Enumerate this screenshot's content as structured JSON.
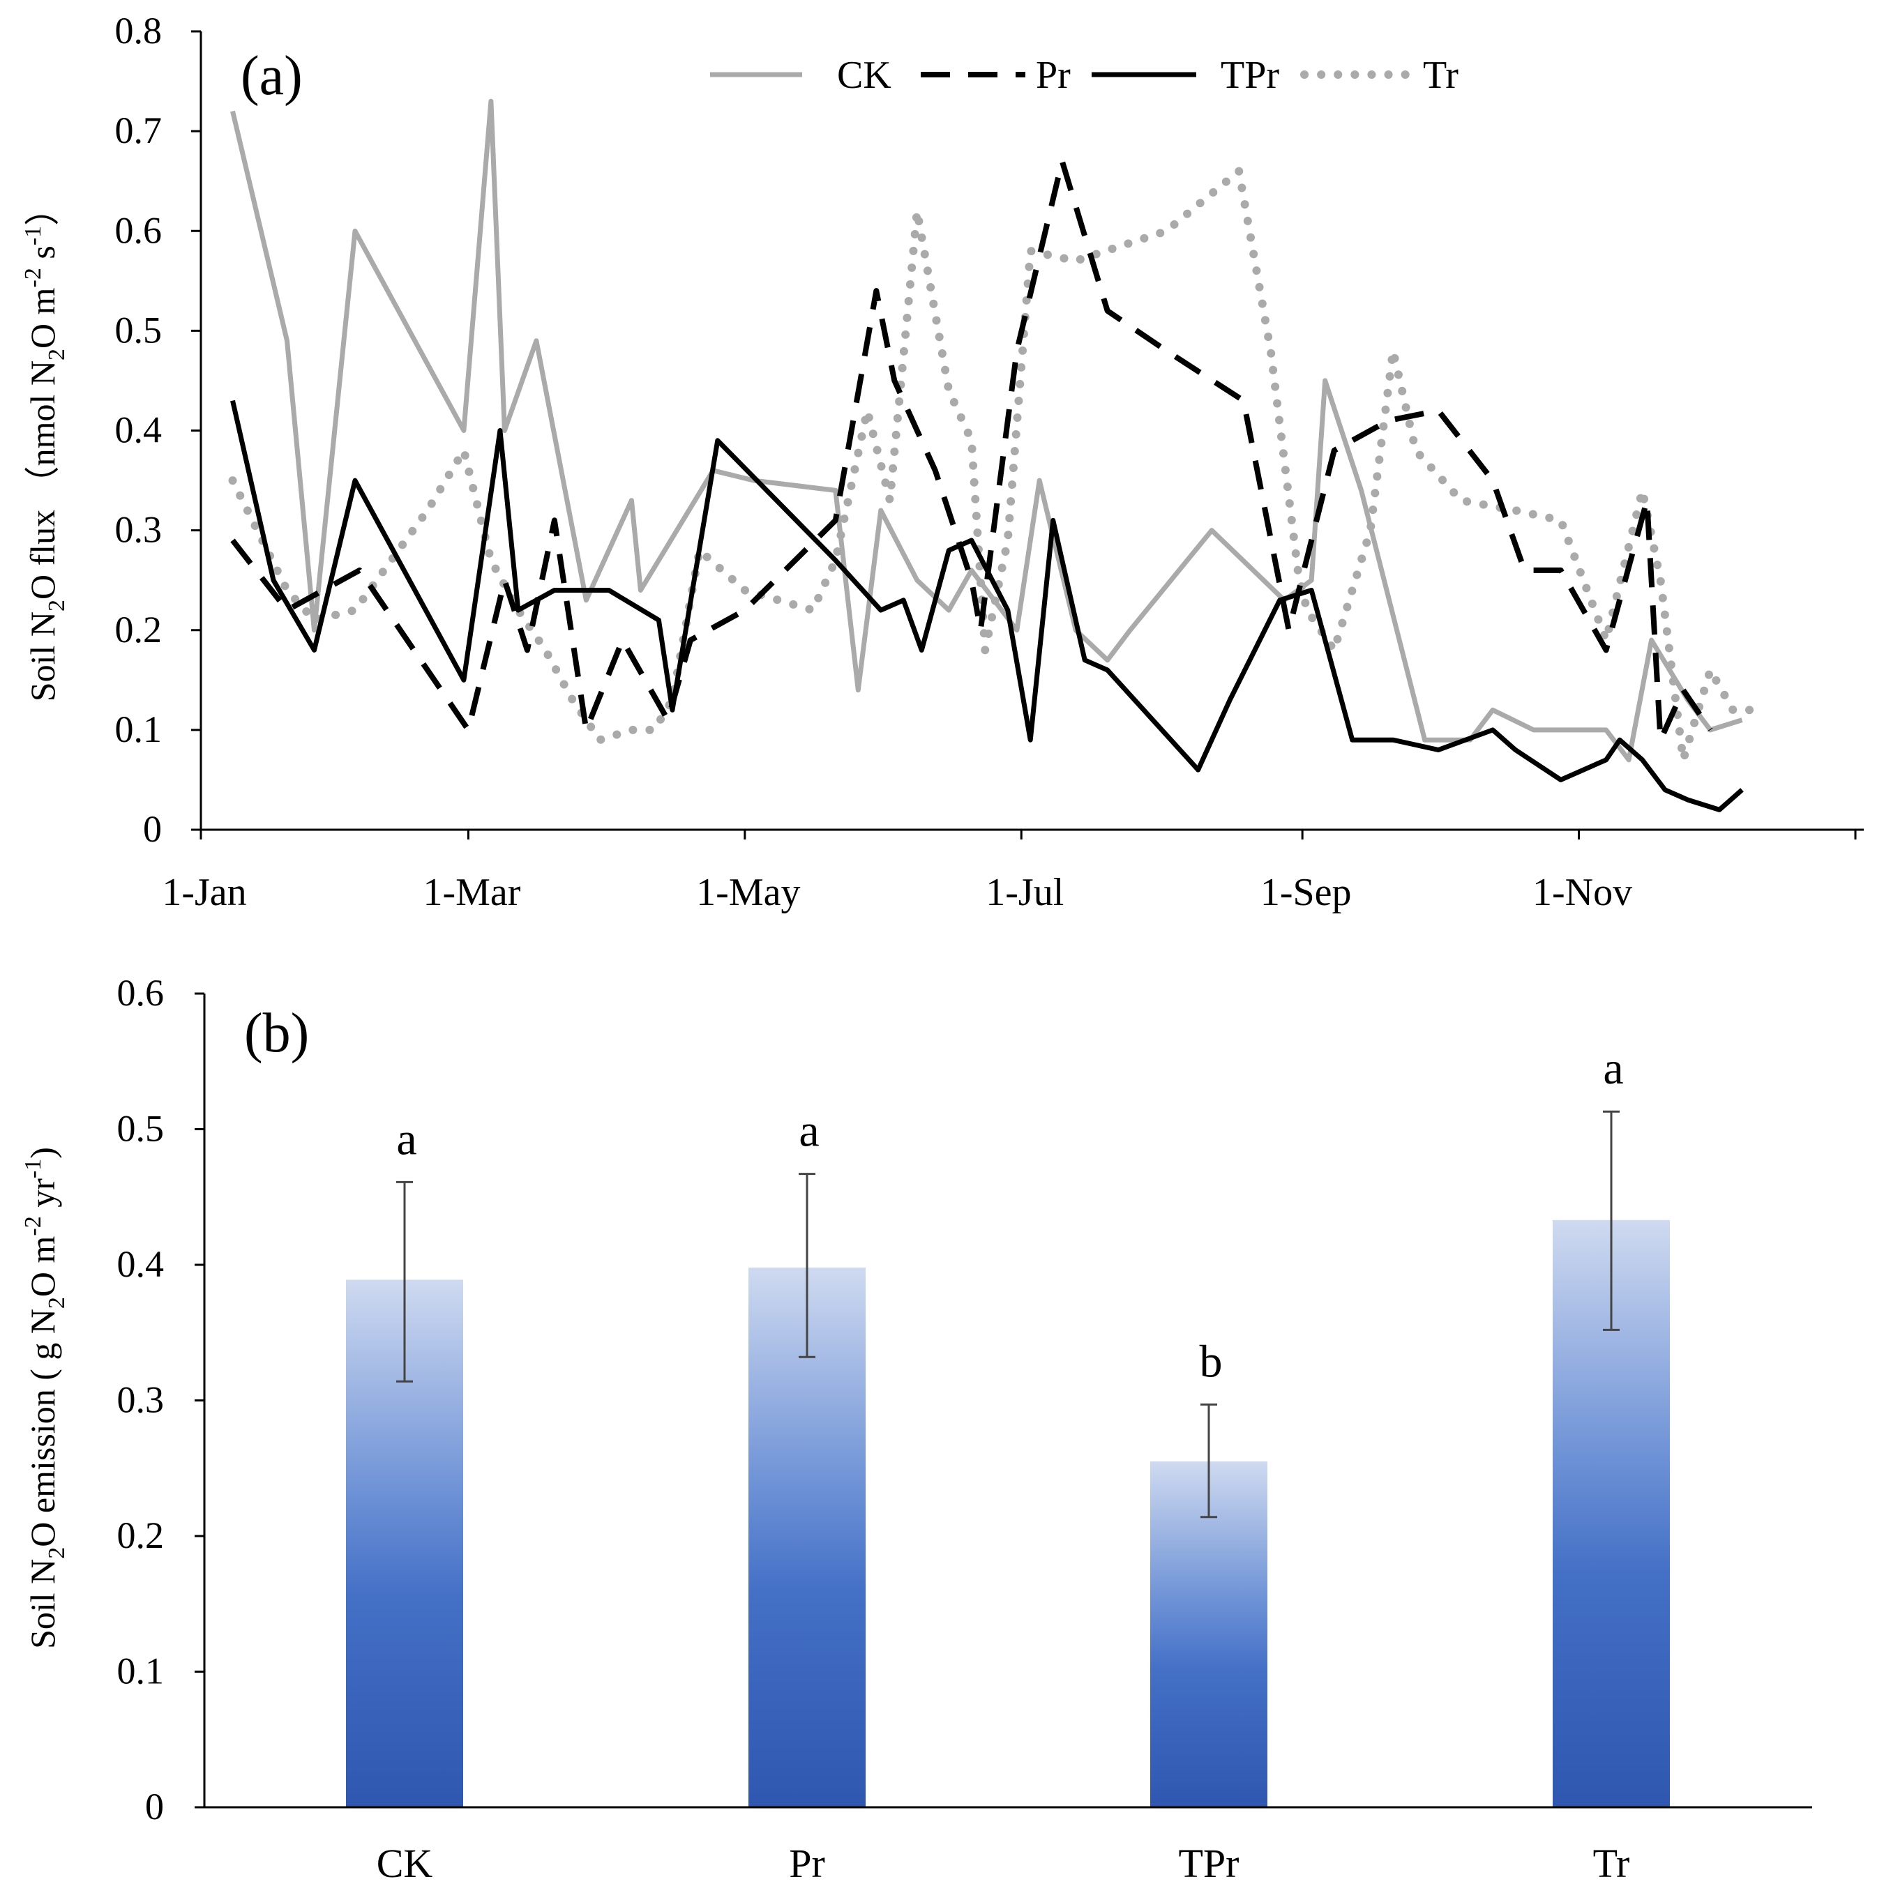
{
  "chart_data": [
    {
      "type": "line",
      "panel_label": "(a)",
      "ylabel": "Soil N2O flux （nmol N2O m-2 s-1）",
      "ylabel_parts": {
        "a": "Soil N",
        "b": "2",
        "c": "O flux （nmol N",
        "d": "2",
        "e": "O m",
        "f": "-2",
        "g": " s",
        "h": "-1",
        "i": "）"
      },
      "xlim": [
        0,
        365
      ],
      "ylim": [
        0,
        0.8
      ],
      "y_ticks": [
        "0",
        "0.1",
        "0.2",
        "0.3",
        "0.4",
        "0.5",
        "0.6",
        "0.7",
        "0.8"
      ],
      "x_ticks": [
        {
          "label": "1-Jan",
          "day": 0
        },
        {
          "label": "1-Mar",
          "day": 59
        },
        {
          "label": "1-May",
          "day": 120
        },
        {
          "label": "1-Jul",
          "day": 181
        },
        {
          "label": "1-Sep",
          "day": 243
        },
        {
          "label": "1-Nov",
          "day": 304
        }
      ],
      "legend_position": "top-center",
      "series": [
        {
          "name": "CK",
          "style": "solid-gray",
          "color": "#aaaaaa",
          "x": [
            7,
            19,
            25,
            34,
            58,
            64,
            67,
            74,
            85,
            95,
            97,
            113,
            122,
            140,
            145,
            150,
            158,
            165,
            170,
            180,
            185,
            193,
            200,
            205,
            223,
            239,
            245,
            248,
            256,
            270,
            280,
            285,
            294,
            306,
            310,
            315,
            320,
            328,
            333,
            340
          ],
          "y": [
            0.72,
            0.49,
            0.2,
            0.6,
            0.4,
            0.73,
            0.4,
            0.49,
            0.23,
            0.33,
            0.24,
            0.36,
            0.35,
            0.34,
            0.14,
            0.32,
            0.25,
            0.22,
            0.26,
            0.2,
            0.35,
            0.2,
            0.17,
            0.2,
            0.3,
            0.23,
            0.25,
            0.45,
            0.34,
            0.09,
            0.09,
            0.12,
            0.1,
            0.1,
            0.1,
            0.07,
            0.19,
            0.13,
            0.1,
            0.11
          ]
        },
        {
          "name": "Pr",
          "style": "dashed-black",
          "color": "#000000",
          "x": [
            7,
            19,
            35,
            59,
            67,
            72,
            78,
            85,
            93,
            103,
            108,
            120,
            140,
            149,
            153,
            162,
            170,
            172,
            180,
            190,
            200,
            213,
            230,
            240,
            250,
            262,
            273,
            285,
            292,
            300,
            310,
            319,
            322,
            327,
            333
          ],
          "y": [
            0.29,
            0.22,
            0.26,
            0.1,
            0.25,
            0.18,
            0.31,
            0.1,
            0.19,
            0.11,
            0.19,
            0.22,
            0.31,
            0.54,
            0.45,
            0.36,
            0.25,
            0.2,
            0.48,
            0.67,
            0.52,
            0.48,
            0.43,
            0.2,
            0.38,
            0.41,
            0.42,
            0.35,
            0.26,
            0.26,
            0.18,
            0.33,
            0.09,
            0.14,
            0.1
          ]
        },
        {
          "name": "TPr",
          "style": "solid-black",
          "color": "#000000",
          "x": [
            7,
            16,
            25,
            34,
            58,
            66,
            70,
            78,
            85,
            90,
            101,
            104,
            114,
            127,
            140,
            150,
            155,
            159,
            165,
            170,
            178,
            183,
            188,
            195,
            200,
            220,
            227,
            238,
            245,
            254,
            263,
            273,
            285,
            290,
            300,
            310,
            313,
            318,
            323,
            328,
            335,
            340
          ],
          "y": [
            0.43,
            0.25,
            0.18,
            0.35,
            0.15,
            0.4,
            0.22,
            0.24,
            0.24,
            0.24,
            0.21,
            0.12,
            0.39,
            0.33,
            0.27,
            0.22,
            0.23,
            0.18,
            0.28,
            0.29,
            0.22,
            0.09,
            0.31,
            0.17,
            0.16,
            0.06,
            0.13,
            0.23,
            0.24,
            0.09,
            0.09,
            0.08,
            0.1,
            0.08,
            0.05,
            0.07,
            0.09,
            0.07,
            0.04,
            0.03,
            0.02,
            0.04
          ]
        },
        {
          "name": "Tr",
          "style": "dotted-gray",
          "color": "#aaaaaa",
          "x": [
            7,
            19,
            25,
            34,
            50,
            58,
            64,
            70,
            76,
            82,
            88,
            95,
            100,
            104,
            110,
            120,
            135,
            140,
            147,
            152,
            158,
            165,
            170,
            173,
            178,
            183,
            193,
            213,
            229,
            236,
            242,
            244,
            250,
            258,
            263,
            268,
            278,
            290,
            300,
            310,
            318,
            322,
            327,
            333,
            338,
            342
          ],
          "y": [
            0.35,
            0.24,
            0.21,
            0.22,
            0.32,
            0.38,
            0.27,
            0.22,
            0.18,
            0.13,
            0.09,
            0.1,
            0.1,
            0.13,
            0.28,
            0.24,
            0.22,
            0.27,
            0.42,
            0.33,
            0.62,
            0.44,
            0.39,
            0.18,
            0.29,
            0.58,
            0.57,
            0.6,
            0.66,
            0.48,
            0.26,
            0.22,
            0.18,
            0.3,
            0.48,
            0.38,
            0.33,
            0.32,
            0.31,
            0.19,
            0.34,
            0.25,
            0.07,
            0.16,
            0.12,
            0.12
          ]
        }
      ]
    },
    {
      "type": "bar",
      "panel_label": "(b)",
      "ylabel": "Soil N2O emission ( g N2O m-2 yr-1)",
      "ylabel_parts": {
        "a": "Soil N",
        "b": "2",
        "c": "O emission ( g N",
        "d": "2",
        "e": "O m",
        "f": "-2",
        "g": " yr",
        "h": "-1",
        "i": ")"
      },
      "ylim": [
        0,
        0.6
      ],
      "y_ticks": [
        "0",
        "0.1",
        "0.2",
        "0.3",
        "0.4",
        "0.5",
        "0.6"
      ],
      "categories": [
        "CK",
        "Pr",
        "TPr",
        "Tr"
      ],
      "values": [
        0.389,
        0.398,
        0.255,
        0.433
      ],
      "error_low": [
        0.314,
        0.332,
        0.214,
        0.352
      ],
      "error_high": [
        0.461,
        0.467,
        0.297,
        0.513
      ],
      "significance": [
        "a",
        "a",
        "b",
        "a"
      ],
      "bar_color": "#3a62b8"
    }
  ]
}
